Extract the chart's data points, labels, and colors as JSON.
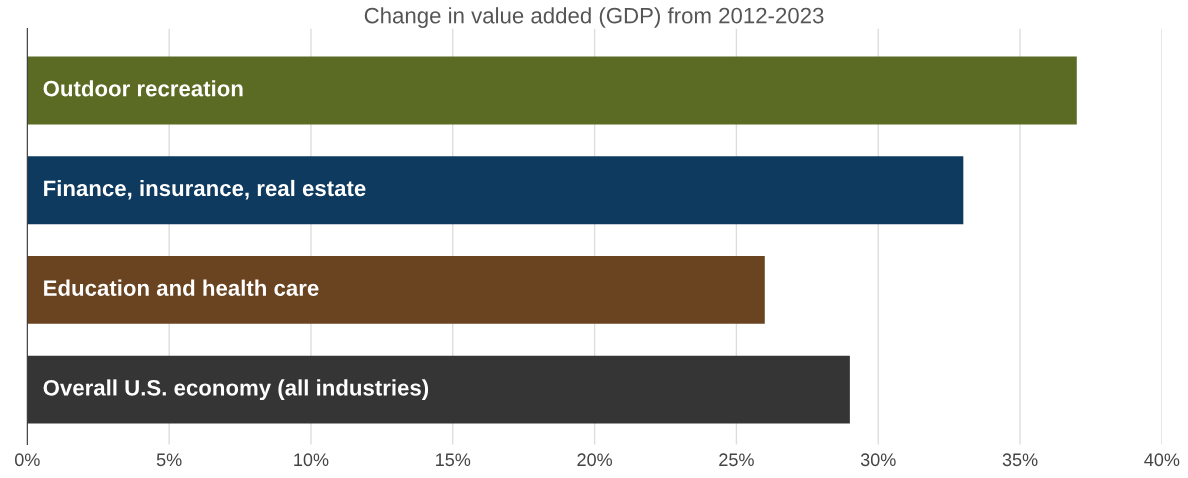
{
  "chart_data": {
    "type": "bar",
    "orientation": "horizontal",
    "title": "Change in value added (GDP) from 2012-2023",
    "categories": [
      "Outdoor recreation",
      "Finance, insurance, real estate",
      "Education and health care",
      "Overall U.S. economy (all industries)"
    ],
    "values": [
      37,
      33,
      26,
      29
    ],
    "colors": [
      "#5b6b24",
      "#0f3a5f",
      "#6a4320",
      "#353535"
    ],
    "xlim": [
      0,
      40
    ],
    "xticks": [
      {
        "value": 0,
        "label": "0%"
      },
      {
        "value": 5,
        "label": "5%"
      },
      {
        "value": 10,
        "label": "10%"
      },
      {
        "value": 15,
        "label": "15%"
      },
      {
        "value": 20,
        "label": "20%"
      },
      {
        "value": 25,
        "label": "25%"
      },
      {
        "value": 30,
        "label": "30%"
      },
      {
        "value": 35,
        "label": "35%"
      },
      {
        "value": 40,
        "label": "40%"
      }
    ],
    "grid": "x",
    "tick_labels": "x"
  }
}
